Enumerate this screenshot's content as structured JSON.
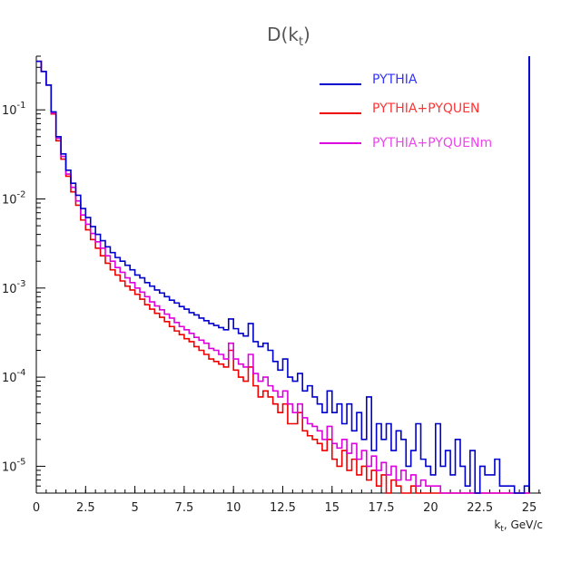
{
  "chart_data": {
    "type": "line",
    "title": "D(k_t)",
    "xlabel": "k_t, GeV/c",
    "ylabel": "",
    "xlim": [
      0,
      25.6
    ],
    "ylim": [
      5e-06,
      0.4
    ],
    "log_y": true,
    "grid": false,
    "legend_position": "top-right",
    "x_ticks": [
      "0",
      "2.5",
      "5",
      "7.5",
      "10",
      "12.5",
      "15",
      "17.5",
      "20",
      "22.5",
      "25"
    ],
    "y_ticks": [
      {
        "base": "10",
        "exp": "-1",
        "value": 0.1
      },
      {
        "base": "10",
        "exp": "-2",
        "value": 0.01
      },
      {
        "base": "10",
        "exp": "-3",
        "value": 0.001
      },
      {
        "base": "10",
        "exp": "-4",
        "value": 0.0001
      },
      {
        "base": "10",
        "exp": "-5",
        "value": 1e-05
      }
    ],
    "bin_width": 0.25,
    "series": [
      {
        "name": "PYTHIA",
        "color": "#0000cc",
        "values": [
          0.35,
          0.27,
          0.19,
          0.095,
          0.05,
          0.032,
          0.021,
          0.015,
          0.011,
          0.0078,
          0.0062,
          0.0049,
          0.004,
          0.0034,
          0.0029,
          0.0025,
          0.0022,
          0.002,
          0.0018,
          0.0016,
          0.0014,
          0.0013,
          0.00115,
          0.00105,
          0.00095,
          0.00088,
          0.0008,
          0.00073,
          0.00068,
          0.00062,
          0.00058,
          0.00053,
          0.0005,
          0.00046,
          0.00043,
          0.0004,
          0.00038,
          0.00036,
          0.00034,
          0.00045,
          0.00035,
          0.00031,
          0.00029,
          0.0004,
          0.00025,
          0.00022,
          0.00024,
          0.0002,
          0.00015,
          0.00012,
          0.00016,
          0.0001,
          9e-05,
          0.00011,
          7e-05,
          8e-05,
          6e-05,
          5e-05,
          4e-05,
          7e-05,
          4e-05,
          5e-05,
          3e-05,
          5e-05,
          2.5e-05,
          4e-05,
          2e-05,
          6e-05,
          1.5e-05,
          3e-05,
          2e-05,
          3e-05,
          1.5e-05,
          2.5e-05,
          2e-05,
          1e-05,
          1.5e-05,
          3e-05,
          1.2e-05,
          1e-05,
          8e-06,
          3e-05,
          1e-05,
          1.5e-05,
          8e-06,
          2e-05,
          1e-05,
          6e-06,
          1.5e-05,
          5e-06,
          1e-05,
          8e-06,
          8e-06,
          1.2e-05,
          6e-06,
          6e-06,
          6e-06,
          5e-06,
          5e-06,
          6e-06
        ]
      },
      {
        "name": "PYTHIA+PYQUEN",
        "color": "#ee0000",
        "values": [
          0.35,
          0.27,
          0.19,
          0.09,
          0.045,
          0.028,
          0.018,
          0.012,
          0.0085,
          0.0058,
          0.0045,
          0.0035,
          0.0028,
          0.0023,
          0.0019,
          0.0016,
          0.0014,
          0.0012,
          0.00105,
          0.00095,
          0.00085,
          0.00075,
          0.00065,
          0.00058,
          0.00052,
          0.00047,
          0.00042,
          0.00037,
          0.00033,
          0.0003,
          0.00027,
          0.00025,
          0.00022,
          0.0002,
          0.00018,
          0.00016,
          0.00015,
          0.00014,
          0.00013,
          0.0002,
          0.00012,
          0.0001,
          9e-05,
          0.00013,
          8e-05,
          6e-05,
          7e-05,
          6e-05,
          5e-05,
          4e-05,
          5e-05,
          3e-05,
          3e-05,
          4e-05,
          2.5e-05,
          2.2e-05,
          2e-05,
          1.8e-05,
          1.5e-05,
          2e-05,
          1.2e-05,
          1e-05,
          1.5e-05,
          9e-06,
          1.2e-05,
          8e-06,
          1e-05,
          7e-06,
          9e-06,
          6e-06,
          8e-06,
          5e-06,
          7e-06,
          6e-06,
          5e-06,
          5e-06,
          6e-06,
          5e-06,
          5e-06,
          5e-06,
          5e-06,
          5e-06,
          5e-06,
          5e-06,
          5e-06,
          5e-06,
          5e-06,
          5e-06,
          5e-06,
          5e-06,
          5e-06,
          5e-06,
          5e-06,
          5e-06,
          5e-06,
          5e-06,
          5e-06,
          5e-06,
          5e-06,
          5e-06
        ]
      },
      {
        "name": "PYTHIA+PYQUENm",
        "color": "#dd00dd",
        "values": [
          0.35,
          0.27,
          0.19,
          0.092,
          0.048,
          0.03,
          0.019,
          0.0135,
          0.0095,
          0.0066,
          0.0052,
          0.0041,
          0.0033,
          0.0028,
          0.0023,
          0.002,
          0.0017,
          0.0015,
          0.0013,
          0.00115,
          0.001,
          0.0009,
          0.0008,
          0.0007,
          0.00063,
          0.00057,
          0.00051,
          0.00046,
          0.00041,
          0.00037,
          0.00034,
          0.00031,
          0.00028,
          0.00026,
          0.00024,
          0.00021,
          0.0002,
          0.00018,
          0.00016,
          0.00024,
          0.00016,
          0.00014,
          0.00013,
          0.00018,
          0.00011,
          9e-05,
          0.0001,
          8e-05,
          7e-05,
          6e-05,
          7e-05,
          5e-05,
          4e-05,
          5e-05,
          3.5e-05,
          3e-05,
          2.8e-05,
          2.5e-05,
          2e-05,
          2.8e-05,
          1.8e-05,
          1.6e-05,
          2e-05,
          1.4e-05,
          1.8e-05,
          1.2e-05,
          1.5e-05,
          1e-05,
          1.3e-05,
          9e-06,
          1.1e-05,
          8e-06,
          1e-05,
          7e-06,
          9e-06,
          7e-06,
          8e-06,
          6e-06,
          7e-06,
          6e-06,
          6e-06,
          6e-06,
          5e-06,
          5e-06,
          5e-06,
          5e-06,
          5e-06,
          5e-06,
          5e-06,
          5e-06,
          5e-06,
          5e-06,
          5e-06,
          5e-06,
          5e-06,
          5e-06,
          5e-06,
          5e-06,
          5e-06,
          5e-06
        ]
      }
    ]
  }
}
